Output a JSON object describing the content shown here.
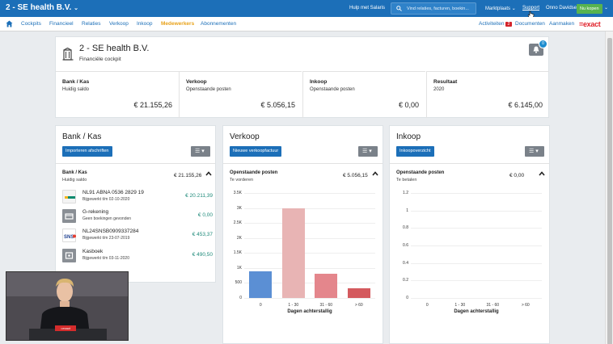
{
  "topbar": {
    "company": "2 - SE health B.V.",
    "help": "Hulp met Salaris",
    "search_placeholder": "Vind relaties, facturen, boekin...",
    "marketplace": "Marktplaats",
    "support": "Support",
    "user": "Onno Davidse",
    "buy_now": "Nu kopen"
  },
  "nav": {
    "items": [
      "Cockpits",
      "Financieel",
      "Relaties",
      "Verkoop",
      "Inkoop",
      "Medewerkers",
      "Abonnementen"
    ],
    "activities": "Activiteiten",
    "activities_count": "2",
    "documents": "Documenten",
    "create": "Aanmaken",
    "logo": "=exact"
  },
  "cockpit": {
    "title": "2 - SE health B.V.",
    "subtitle": "Financiële cockpit",
    "notification_count": "0",
    "kpis": [
      {
        "label": "Bank / Kas",
        "sub": "Huidig saldo",
        "value": "€ 21.155,26"
      },
      {
        "label": "Verkoop",
        "sub": "Openstaande posten",
        "value": "€ 5.056,15"
      },
      {
        "label": "Inkoop",
        "sub": "Openstaande posten",
        "value": "€ 0,00"
      },
      {
        "label": "Resultaat",
        "sub": "2020",
        "value": "€ 6.145,00"
      }
    ]
  },
  "bank": {
    "title": "Bank / Kas",
    "button": "Importeren afschriften",
    "section_title": "Bank / Kas",
    "section_sub": "Huidig saldo",
    "section_value": "€ 21.155,26",
    "accounts": [
      {
        "name": "NL91 ABNA 0536 2829 19",
        "sub": "Bijgewerkt t/m 02-10-2020",
        "value": "€ 20.211,39"
      },
      {
        "name": "G-rekening",
        "sub": "Geen boekingen gevonden",
        "value": "€ 0,00"
      },
      {
        "name": "NL24SNSB0909337284",
        "sub": "Bijgewerkt t/m 23-07-2019",
        "value": "€ 453,37"
      },
      {
        "name": "Kasboek",
        "sub": "Bijgewerkt t/m 03-11-2020",
        "value": "€ 490,50"
      }
    ]
  },
  "sales": {
    "title": "Verkoop",
    "button": "Nieuwe verkoopfactuur",
    "section_title": "Openstaande posten",
    "section_sub": "Te vorderen",
    "section_value": "€ 5.056,15"
  },
  "purchase": {
    "title": "Inkoop",
    "button": "Inkoopoverzicht",
    "section_title": "Openstaande posten",
    "section_sub": "Te betalen",
    "section_value": "€ 0,00"
  },
  "chart_data": [
    {
      "type": "bar",
      "categories": [
        "0",
        "1 - 30",
        "31 - 60",
        "> 60"
      ],
      "values": [
        900,
        3000,
        820,
        330
      ],
      "colors": [
        "#5b8fd4",
        "#e8b4b4",
        "#e4868c",
        "#d45a5e"
      ],
      "xlabel": "Dagen achterstallig",
      "yticks": [
        "0",
        "500",
        "1K",
        "1.5K",
        "2K",
        "2.5K",
        "3K",
        "3.5K"
      ],
      "ylim": [
        0,
        3500
      ]
    },
    {
      "type": "bar",
      "categories": [
        "0",
        "1 - 30",
        "31 - 60",
        "> 60"
      ],
      "values": [
        0,
        0,
        0,
        0
      ],
      "xlabel": "Dagen achterstallig",
      "yticks": [
        "0",
        "0.2",
        "0.4",
        "0.6",
        "0.8",
        "1",
        "1.2"
      ],
      "ylim": [
        0,
        1.2
      ]
    }
  ],
  "webcam": {
    "sign": "=exact"
  }
}
